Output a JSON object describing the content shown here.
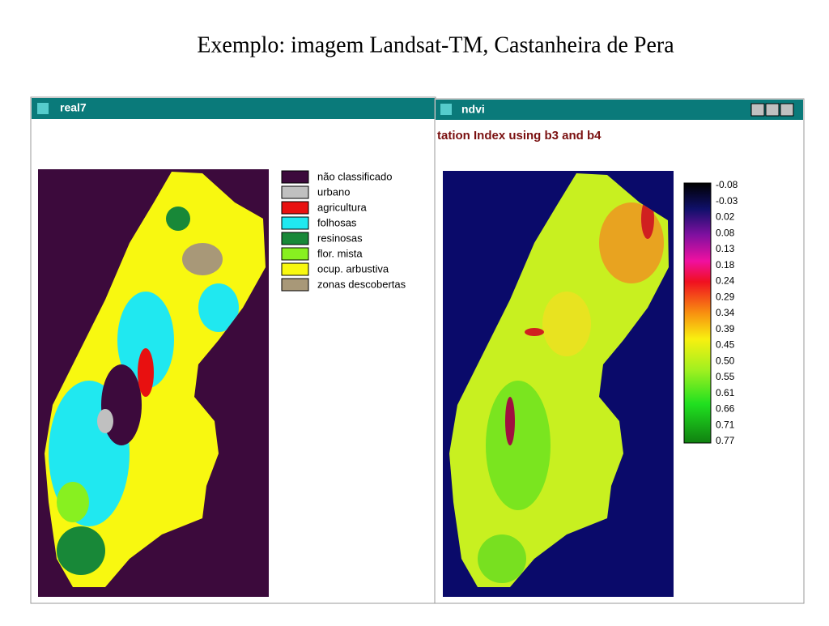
{
  "slide_title": "Exemplo: imagem Landsat-TM, Castanheira de Pera",
  "left_window": {
    "title": "real7",
    "legend": [
      {
        "label": "não classificado",
        "color": "#3c0a3c"
      },
      {
        "label": "urbano",
        "color": "#c0c0c0"
      },
      {
        "label": "agricultura",
        "color": "#e81010"
      },
      {
        "label": "folhosas",
        "color": "#20e8f0"
      },
      {
        "label": "resinosas",
        "color": "#188838"
      },
      {
        "label": "flor. mista",
        "color": "#88f020"
      },
      {
        "label": "ocup. arbustiva",
        "color": "#f8f810"
      },
      {
        "label": "zonas descobertas",
        "color": "#a89878"
      }
    ]
  },
  "right_window": {
    "title": "ndvi",
    "subtitle": "tation Index using b3 and b4",
    "colorbar_labels": [
      "-0.08",
      "-0.03",
      "0.02",
      "0.08",
      "0.13",
      "0.18",
      "0.24",
      "0.29",
      "0.34",
      "0.39",
      "0.45",
      "0.50",
      "0.55",
      "0.61",
      "0.66",
      "0.71",
      "0.77"
    ]
  }
}
